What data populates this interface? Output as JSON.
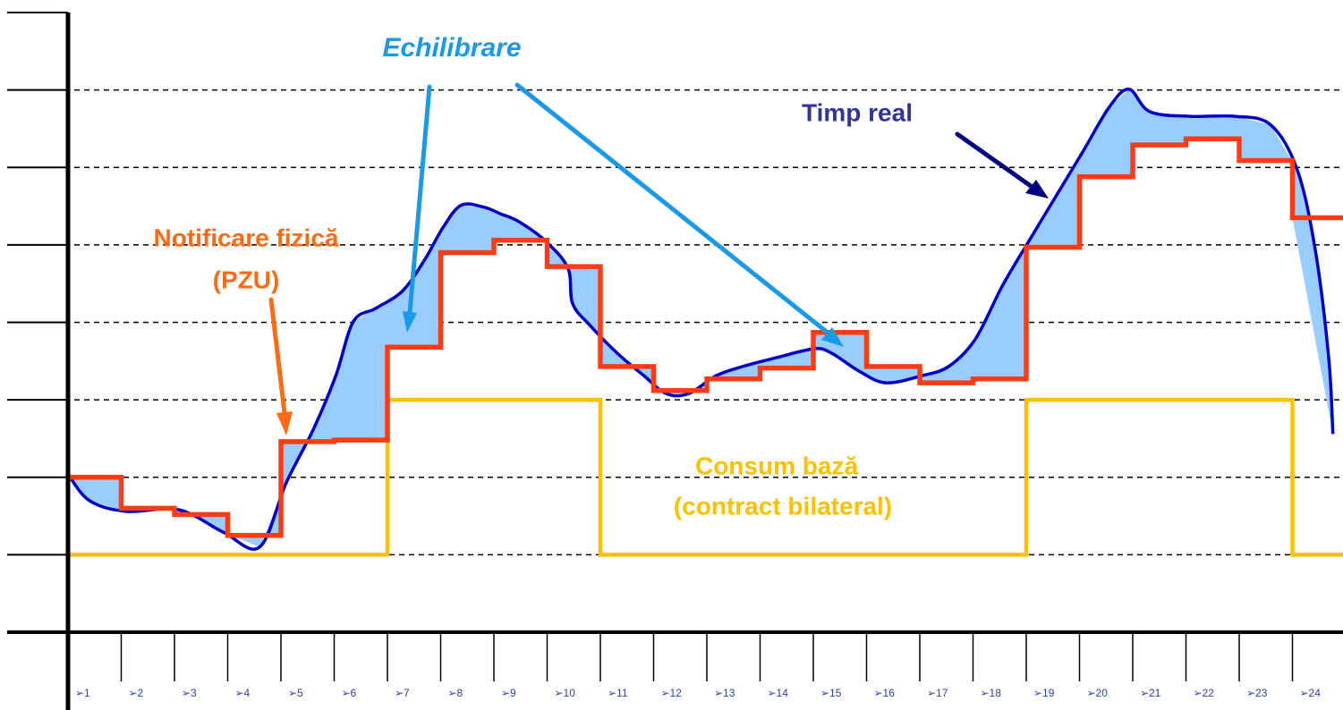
{
  "chart_data": {
    "type": "line",
    "categories": [
      "➢1",
      "➢2",
      "➢3",
      "➢4",
      "➢5",
      "➢6",
      "➢7",
      "➢8",
      "➢9",
      "➢10",
      "➢11",
      "➢12",
      "➢13",
      "➢14",
      "➢15",
      "➢16",
      "➢17",
      "➢18",
      "➢19",
      "➢20",
      "➢21",
      "➢22",
      "➢23",
      "➢24"
    ],
    "ylim": [
      0,
      8
    ],
    "yticks": [
      0,
      1,
      2,
      3,
      4,
      5,
      6,
      7,
      8
    ],
    "xlim": [
      0,
      24
    ],
    "grid": true,
    "annotation": "Echilibrare",
    "series": [
      {
        "label_lines": [
          "Consum bază",
          "(contract bilateral)"
        ],
        "color": "#ffc000",
        "style": "step",
        "values": [
          1,
          1,
          1,
          1,
          1,
          1,
          3,
          3,
          3,
          3,
          1,
          1,
          1,
          1,
          1,
          1,
          1,
          1,
          3,
          3,
          3,
          3,
          3,
          1
        ]
      },
      {
        "label_lines": [
          "Notificare fizică",
          "(PZU)"
        ],
        "color": "#ff3b14",
        "style": "step",
        "values": [
          2.0,
          1.6,
          1.52,
          1.25,
          2.46,
          2.48,
          3.68,
          4.9,
          5.06,
          4.72,
          3.43,
          3.12,
          3.27,
          3.41,
          3.87,
          3.43,
          3.22,
          3.27,
          4.97,
          5.88,
          6.29,
          6.37,
          6.09,
          5.35
        ]
      },
      {
        "label_lines": [
          "Timp real"
        ],
        "color": "#0000cc",
        "style": "smooth",
        "x": [
          0,
          0.4,
          1.08,
          2.08,
          2.92,
          3.6,
          4.1,
          4.61,
          5.03,
          5.36,
          5.78,
          6.29,
          6.71,
          7.04,
          7.38,
          7.8,
          8.13,
          8.47,
          8.97,
          9.39,
          9.48,
          9.82,
          10.32,
          10.82,
          11.24,
          11.66,
          12.17,
          12.67,
          13.34,
          14.02,
          14.35,
          14.86,
          15.36,
          16.03,
          16.54,
          17.04,
          17.55,
          18.05,
          18.55,
          19.06,
          19.56,
          19.93,
          20.32,
          21.08,
          21.92,
          22.59,
          23.09,
          23.43,
          23.68,
          23.76
        ],
        "values": [
          2.04,
          1.7,
          1.56,
          1.58,
          1.29,
          1.1,
          1.93,
          2.62,
          3.31,
          4.01,
          4.18,
          4.41,
          4.82,
          5.22,
          5.51,
          5.49,
          5.4,
          5.3,
          5.05,
          4.7,
          4.24,
          3.95,
          3.6,
          3.31,
          3.08,
          3.08,
          3.31,
          3.43,
          3.55,
          3.66,
          3.6,
          3.37,
          3.22,
          3.31,
          3.43,
          3.78,
          4.47,
          5.05,
          5.62,
          6.2,
          6.78,
          7.01,
          6.72,
          6.66,
          6.66,
          6.55,
          5.97,
          4.93,
          3.55,
          2.56
        ]
      }
    ]
  }
}
